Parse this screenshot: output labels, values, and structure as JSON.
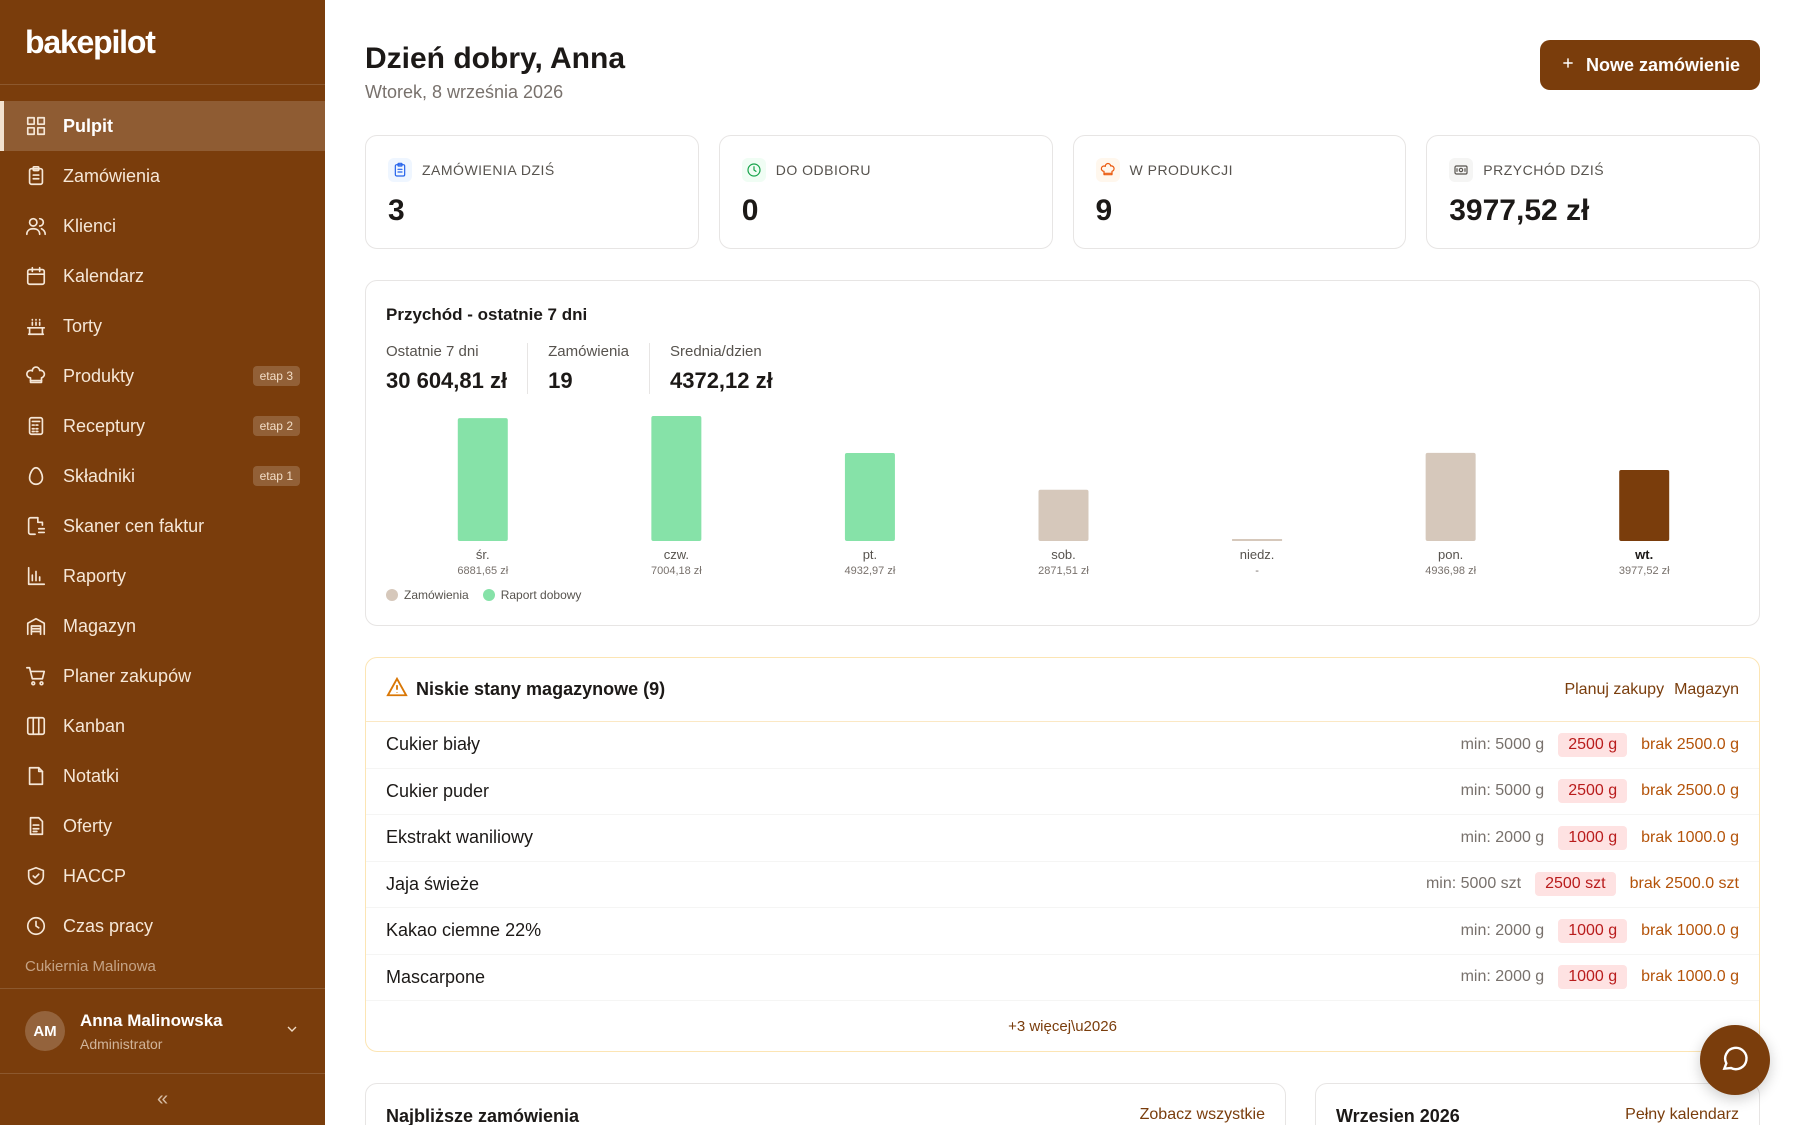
{
  "brand": {
    "logo_text": "bakepilot"
  },
  "sidebar": {
    "items": [
      {
        "label": "Pulpit",
        "icon": "grid-icon",
        "active": true
      },
      {
        "label": "Zamówienia",
        "icon": "clipboard-icon"
      },
      {
        "label": "Klienci",
        "icon": "users-icon"
      },
      {
        "label": "Kalendarz",
        "icon": "calendar-icon"
      },
      {
        "label": "Torty",
        "icon": "cake-icon"
      },
      {
        "label": "Produkty",
        "icon": "chef-hat-icon",
        "badge": "etap 3"
      },
      {
        "label": "Receptury",
        "icon": "calculator-icon",
        "badge": "etap 2"
      },
      {
        "label": "Składniki",
        "icon": "egg-icon",
        "badge": "etap 1"
      },
      {
        "label": "Skaner cen faktur",
        "icon": "file-scan-icon"
      },
      {
        "label": "Raporty",
        "icon": "bar-chart-icon"
      },
      {
        "label": "Magazyn",
        "icon": "warehouse-icon"
      },
      {
        "label": "Planer zakupów",
        "icon": "cart-icon"
      },
      {
        "label": "Kanban",
        "icon": "columns-icon"
      },
      {
        "label": "Notatki",
        "icon": "note-icon"
      },
      {
        "label": "Oferty",
        "icon": "document-icon"
      },
      {
        "label": "HACCP",
        "icon": "shield-icon"
      },
      {
        "label": "Czas pracy",
        "icon": "clock-icon"
      }
    ],
    "shop_name": "Cukiernia Malinowa",
    "user": {
      "initials": "AM",
      "name": "Anna Malinowska",
      "role": "Administrator"
    },
    "collapse_label": "«"
  },
  "header": {
    "greeting": "Dzień dobry, Anna",
    "date": "Wtorek, 8 września 2026",
    "new_order_label": "Nowe zamówienie"
  },
  "stats": [
    {
      "label": "ZAMÓWIENIA DZIŚ",
      "value": "3",
      "icon": "clipboard-icon",
      "color": "#2563eb",
      "bg": "#eff6ff"
    },
    {
      "label": "DO ODBIORU",
      "value": "0",
      "icon": "clock-icon",
      "color": "#16a34a",
      "bg": "#f0fdf4"
    },
    {
      "label": "W PRODUKCJI",
      "value": "9",
      "icon": "chef-hat-icon",
      "color": "#ea580c",
      "bg": "#fff7ed"
    },
    {
      "label": "PRZYCHÓD DZIŚ",
      "value": "3977,52 zł",
      "icon": "banknote-icon",
      "color": "#57534e",
      "bg": "#f5f5f4"
    }
  ],
  "revenue": {
    "title": "Przychód - ostatnie 7 dni",
    "summary": [
      {
        "label": "Ostatnie 7 dni",
        "value": "30 604,81 zł"
      },
      {
        "label": "Zamówienia",
        "value": "19"
      },
      {
        "label": "Srednia/dzien",
        "value": "4372,12 zł"
      }
    ],
    "legend": [
      {
        "label": "Zamówienia",
        "color": "#d6c8bb"
      },
      {
        "label": "Raport dobowy",
        "color": "#86e2a8"
      }
    ]
  },
  "chart_data": {
    "type": "bar",
    "title": "Przychód - ostatnie 7 dni",
    "categories": [
      "śr.",
      "czw.",
      "pt.",
      "sob.",
      "niedz.",
      "pon.",
      "wt."
    ],
    "values": [
      6881.65,
      7004.18,
      4932.97,
      2871.51,
      0,
      4936.98,
      3977.52
    ],
    "value_labels": [
      "6881,65 zł",
      "7004,18 zł",
      "4932,97 zł",
      "2871,51 zł",
      "-",
      "4936,98 zł",
      "3977,52 zł"
    ],
    "sources": [
      "Raport dobowy",
      "Raport dobowy",
      "Raport dobowy",
      "Zamówienia",
      "Zamówienia",
      "Zamówienia",
      "Zamówienia"
    ],
    "highlight_index": 6,
    "colors": {
      "Raport dobowy": "#86e2a8",
      "Zamówienia": "#d6c8bb",
      "today": "#7a3d0c"
    },
    "ylim": [
      0,
      7004.18
    ],
    "grid": false,
    "legend": "bottom-left"
  },
  "low_stock": {
    "title": "Niskie stany magazynowe (9)",
    "links": [
      "Planuj zakupy",
      "Magazyn"
    ],
    "items": [
      {
        "name": "Cukier biały",
        "min": "min: 5000 g",
        "qty": "2500 g",
        "short": "brak 2500.0 g"
      },
      {
        "name": "Cukier puder",
        "min": "min: 5000 g",
        "qty": "2500 g",
        "short": "brak 2500.0 g"
      },
      {
        "name": "Ekstrakt waniliowy",
        "min": "min: 2000 g",
        "qty": "1000 g",
        "short": "brak 1000.0 g"
      },
      {
        "name": "Jaja świeże",
        "min": "min: 5000 szt",
        "qty": "2500 szt",
        "short": "brak 2500.0 szt"
      },
      {
        "name": "Kakao ciemne 22%",
        "min": "min: 2000 g",
        "qty": "1000 g",
        "short": "brak 1000.0 g"
      },
      {
        "name": "Mascarpone",
        "min": "min: 2000 g",
        "qty": "1000 g",
        "short": "brak 1000.0 g"
      }
    ],
    "more": "+3 więcej\\u2026"
  },
  "upcoming": {
    "title": "Najbliższe zamówienia",
    "link": "Zobacz wszystkie"
  },
  "calendar": {
    "title": "Wrzesien 2026",
    "link": "Pełny kalendarz"
  }
}
